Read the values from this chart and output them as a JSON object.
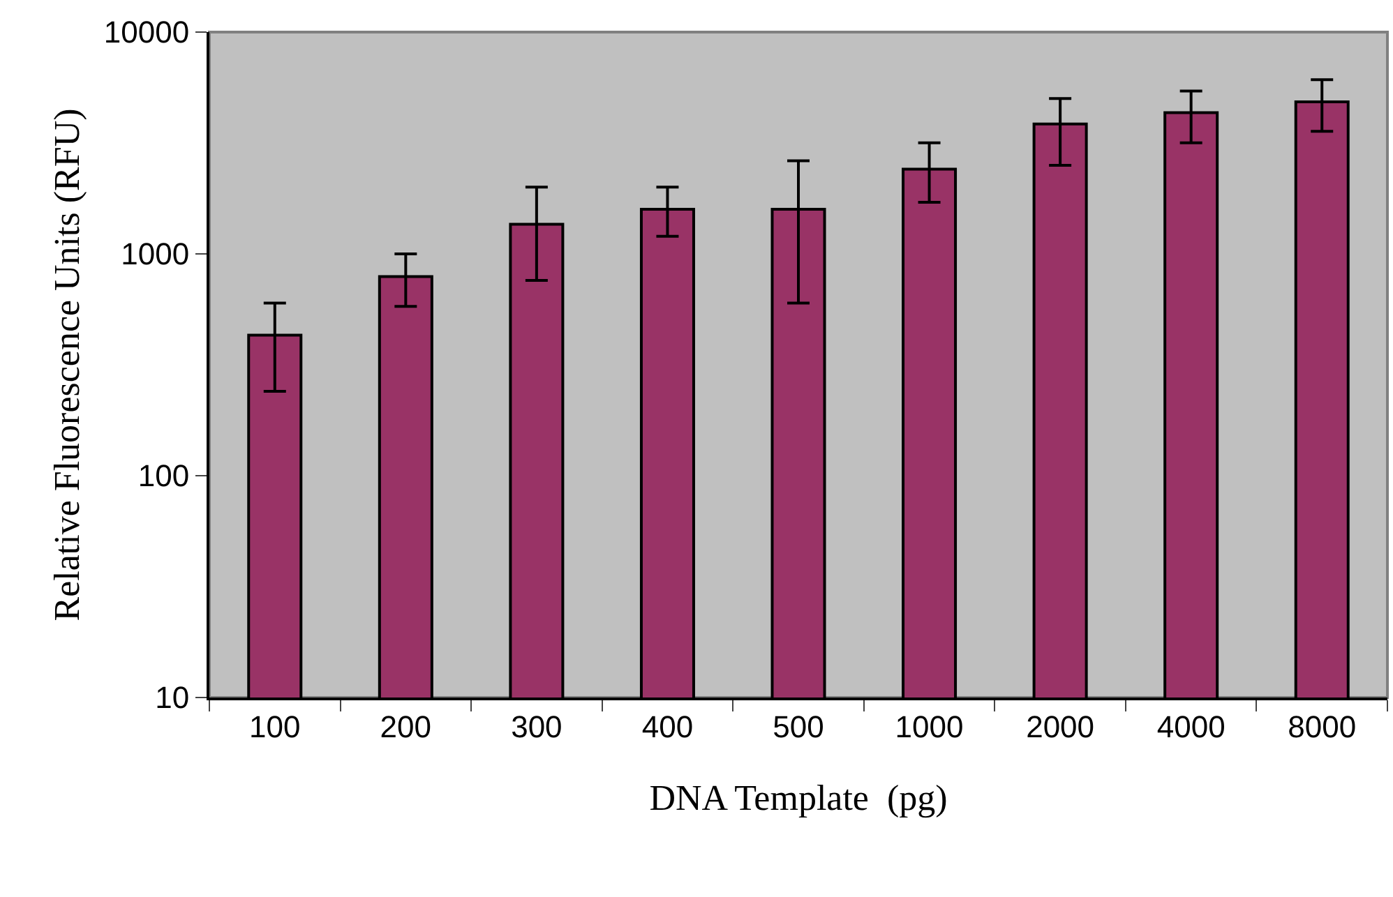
{
  "chart_data": {
    "type": "bar",
    "xlabel": "DNA Template  (pg)",
    "ylabel": "Relative Fluorescence Units (RFU)",
    "categories": [
      "100",
      "200",
      "300",
      "400",
      "500",
      "1000",
      "2000",
      "4000",
      "8000"
    ],
    "values": [
      430,
      790,
      1360,
      1590,
      1590,
      2410,
      3850,
      4330,
      4850
    ],
    "errors": [
      [
        240,
        600
      ],
      [
        580,
        1000
      ],
      [
        760,
        2000
      ],
      [
        1200,
        2000
      ],
      [
        600,
        2630
      ],
      [
        1710,
        3170
      ],
      [
        2510,
        5020
      ],
      [
        3170,
        5420
      ],
      [
        3570,
        6100
      ]
    ],
    "color": "#993366",
    "log": "y",
    "ylim": [
      10,
      10000
    ],
    "yticks": [
      10,
      100,
      1000,
      10000
    ]
  }
}
